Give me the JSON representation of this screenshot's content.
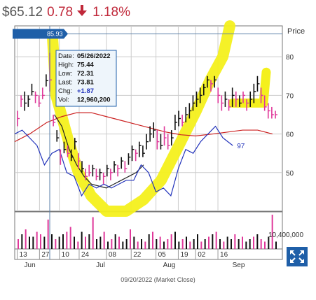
{
  "quote": {
    "last_price": "$65.12",
    "change": "0.78",
    "change_percent": "1.18%",
    "direction": "down",
    "down_color": "#c0283a"
  },
  "tooltip": {
    "date_label": "Date:",
    "date": "05/26/2022",
    "high_label": "High:",
    "high": "75.44",
    "low_label": "Low:",
    "low": "72.31",
    "last_label": "Last:",
    "last": "73.81",
    "chg_label": "Chg:",
    "chg": "+1.87",
    "vol_label": "Vol:",
    "vol": "12,960,200"
  },
  "crosshair_price": "85.93",
  "price_axis_title": "Price",
  "relative_strength_label": "97",
  "volume_scale_label": "10,400,000",
  "footer": "09/20/2022 (Market Close)",
  "expand_icon": "expand-arrows-icon",
  "chart_data": {
    "type": "line",
    "xlabel": "",
    "ylabel": "",
    "ylim": [
      40,
      88
    ],
    "grid": true,
    "price_ticks": [
      50,
      60,
      70,
      80
    ],
    "date_ticks": [
      "13",
      "27",
      "10",
      "24",
      "08",
      "22",
      "05",
      "19",
      "02",
      "16"
    ],
    "month_labels": [
      "Jun",
      "Jul",
      "Aug",
      "Sep"
    ],
    "bars": [
      {
        "date": "05/13",
        "high": 66,
        "low": 62,
        "close": 64,
        "color": "pink"
      },
      {
        "date": "05/17",
        "high": 70,
        "low": 67,
        "close": 69,
        "color": "pink"
      },
      {
        "date": "05/18",
        "high": 71,
        "low": 66,
        "close": 68,
        "color": "black"
      },
      {
        "date": "05/19",
        "high": 70,
        "low": 67,
        "close": 69,
        "color": "black"
      },
      {
        "date": "05/20",
        "high": 73,
        "low": 70,
        "close": 71,
        "color": "black"
      },
      {
        "date": "05/23",
        "high": 71,
        "low": 68,
        "close": 70,
        "color": "pink"
      },
      {
        "date": "05/24",
        "high": 70,
        "low": 67,
        "close": 68,
        "color": "pink"
      },
      {
        "date": "05/25",
        "high": 72,
        "low": 69,
        "close": 70,
        "color": "pink"
      },
      {
        "date": "05/26",
        "high": 75.44,
        "low": 72.31,
        "close": 73.81,
        "color": "black"
      },
      {
        "date": "05/27",
        "high": 81,
        "low": 71,
        "close": 74,
        "color": "pink"
      },
      {
        "date": "06/10",
        "high": 65,
        "low": 62,
        "close": 63,
        "color": "pink"
      },
      {
        "date": "06/13",
        "high": 61,
        "low": 58,
        "close": 59,
        "color": "black"
      },
      {
        "date": "06/14",
        "high": 56,
        "low": 52,
        "close": 54,
        "color": "pink"
      },
      {
        "date": "06/15",
        "high": 58,
        "low": 55,
        "close": 56,
        "color": "black"
      },
      {
        "date": "06/16",
        "high": 57,
        "low": 54,
        "close": 55,
        "color": "pink"
      },
      {
        "date": "06/17",
        "high": 56,
        "low": 53,
        "close": 54,
        "color": "black"
      },
      {
        "date": "06/21",
        "high": 59,
        "low": 56,
        "close": 58,
        "color": "black"
      },
      {
        "date": "06/22",
        "high": 55,
        "low": 51,
        "close": 53,
        "color": "pink"
      },
      {
        "date": "06/23",
        "high": 53,
        "low": 50,
        "close": 51,
        "color": "black"
      },
      {
        "date": "06/24",
        "high": 51,
        "low": 48,
        "close": 49,
        "color": "pink"
      },
      {
        "date": "06/27",
        "high": 52,
        "low": 49,
        "close": 50,
        "color": "pink"
      },
      {
        "date": "06/28",
        "high": 52,
        "low": 49,
        "close": 51,
        "color": "black"
      },
      {
        "date": "06/29",
        "high": 51,
        "low": 48,
        "close": 49,
        "color": "pink"
      },
      {
        "date": "06/30",
        "high": 51,
        "low": 48,
        "close": 50,
        "color": "black"
      },
      {
        "date": "07/01",
        "high": 50,
        "low": 47,
        "close": 49,
        "color": "pink"
      },
      {
        "date": "07/05",
        "high": 52,
        "low": 49,
        "close": 51,
        "color": "black"
      },
      {
        "date": "07/06",
        "high": 51,
        "low": 48,
        "close": 50,
        "color": "pink"
      },
      {
        "date": "07/07",
        "high": 53,
        "low": 50,
        "close": 52,
        "color": "black"
      },
      {
        "date": "07/08",
        "high": 52,
        "low": 49,
        "close": 51,
        "color": "pink"
      },
      {
        "date": "07/11",
        "high": 54,
        "low": 51,
        "close": 53,
        "color": "black"
      },
      {
        "date": "07/12",
        "high": 53,
        "low": 50,
        "close": 51,
        "color": "pink"
      },
      {
        "date": "07/13",
        "high": 55,
        "low": 52,
        "close": 54,
        "color": "black"
      },
      {
        "date": "07/14",
        "high": 57,
        "low": 53,
        "close": 56,
        "color": "black"
      },
      {
        "date": "07/15",
        "high": 56,
        "low": 53,
        "close": 55,
        "color": "pink"
      },
      {
        "date": "07/18",
        "high": 58,
        "low": 54,
        "close": 57,
        "color": "black"
      },
      {
        "date": "07/19",
        "high": 57,
        "low": 54,
        "close": 55,
        "color": "black"
      },
      {
        "date": "07/20",
        "high": 60,
        "low": 56,
        "close": 58,
        "color": "black"
      },
      {
        "date": "07/21",
        "high": 62,
        "low": 58,
        "close": 60,
        "color": "black"
      },
      {
        "date": "07/25",
        "high": 63,
        "low": 59,
        "close": 61,
        "color": "black"
      },
      {
        "date": "07/26",
        "high": 61,
        "low": 56,
        "close": 58,
        "color": "pink"
      },
      {
        "date": "07/27",
        "high": 60,
        "low": 56,
        "close": 57,
        "color": "black"
      },
      {
        "date": "07/28",
        "high": 62,
        "low": 57,
        "close": 59,
        "color": "pink"
      },
      {
        "date": "07/29",
        "high": 60,
        "low": 56,
        "close": 57,
        "color": "pink"
      },
      {
        "date": "08/01",
        "high": 61,
        "low": 57,
        "close": 59,
        "color": "black"
      },
      {
        "date": "08/03",
        "high": 65,
        "low": 61,
        "close": 63,
        "color": "black"
      },
      {
        "date": "08/04",
        "high": 66,
        "low": 62,
        "close": 64,
        "color": "black"
      },
      {
        "date": "08/05",
        "high": 65,
        "low": 62,
        "close": 63,
        "color": "pink"
      },
      {
        "date": "08/08",
        "high": 67,
        "low": 63,
        "close": 65,
        "color": "black"
      },
      {
        "date": "08/09",
        "high": 68,
        "low": 64,
        "close": 66,
        "color": "black"
      },
      {
        "date": "08/10",
        "high": 70,
        "low": 66,
        "close": 68,
        "color": "black"
      },
      {
        "date": "08/11",
        "high": 71,
        "low": 67,
        "close": 69,
        "color": "black"
      },
      {
        "date": "08/12",
        "high": 72,
        "low": 68,
        "close": 70,
        "color": "black"
      },
      {
        "date": "08/15",
        "high": 73,
        "low": 70,
        "close": 72,
        "color": "black"
      },
      {
        "date": "08/16",
        "high": 75,
        "low": 72,
        "close": 74,
        "color": "black"
      },
      {
        "date": "08/17",
        "high": 74,
        "low": 71,
        "close": 73,
        "color": "pink"
      },
      {
        "date": "08/18",
        "high": 75,
        "low": 72,
        "close": 74,
        "color": "black"
      },
      {
        "date": "08/19",
        "high": 72,
        "low": 68,
        "close": 70,
        "color": "pink"
      },
      {
        "date": "08/22",
        "high": 70,
        "low": 66,
        "close": 68,
        "color": "pink"
      },
      {
        "date": "08/23",
        "high": 71,
        "low": 67,
        "close": 69,
        "color": "black"
      },
      {
        "date": "08/24",
        "high": 69,
        "low": 66,
        "close": 67,
        "color": "pink"
      },
      {
        "date": "08/25",
        "high": 72,
        "low": 67,
        "close": 70,
        "color": "black"
      },
      {
        "date": "08/26",
        "high": 71,
        "low": 67,
        "close": 69,
        "color": "pink"
      },
      {
        "date": "08/29",
        "high": 70,
        "low": 67,
        "close": 68,
        "color": "black"
      },
      {
        "date": "08/30",
        "high": 71,
        "low": 68,
        "close": 70,
        "color": "pink"
      },
      {
        "date": "08/31",
        "high": 69,
        "low": 66,
        "close": 68,
        "color": "pink"
      },
      {
        "date": "09/01",
        "high": 71,
        "low": 67,
        "close": 69,
        "color": "black"
      },
      {
        "date": "09/02",
        "high": 73,
        "low": 68,
        "close": 71,
        "color": "black"
      },
      {
        "date": "09/06",
        "high": 75,
        "low": 71,
        "close": 73,
        "color": "black"
      },
      {
        "date": "09/07",
        "high": 72,
        "low": 68,
        "close": 70,
        "color": "pink"
      },
      {
        "date": "09/08",
        "high": 70,
        "low": 66,
        "close": 67,
        "color": "pink"
      },
      {
        "date": "09/09",
        "high": 68,
        "low": 64,
        "close": 66,
        "color": "pink"
      },
      {
        "date": "09/12",
        "high": 67,
        "low": 64,
        "close": 65,
        "color": "pink"
      },
      {
        "date": "09/13",
        "high": 66,
        "low": 64,
        "close": 65,
        "color": "pink"
      }
    ],
    "series": [
      {
        "color": "#cc2222",
        "values": [
          [
            0,
            58
          ],
          [
            6,
            60
          ],
          [
            13,
            63
          ],
          [
            19,
            64.5
          ],
          [
            25,
            65.5
          ],
          [
            31,
            65.5
          ],
          [
            37,
            64.5
          ],
          [
            43,
            63.5
          ],
          [
            49,
            62.5
          ],
          [
            55,
            61.5
          ],
          [
            61,
            60.5
          ],
          [
            67,
            59.8
          ],
          [
            73,
            59.5
          ],
          [
            80,
            60
          ],
          [
            86,
            60.5
          ],
          [
            92,
            61
          ],
          [
            98,
            61
          ],
          [
            104,
            60
          ]
        ]
      },
      {
        "color": "#222222",
        "values": [
          [
            16,
            65
          ],
          [
            19,
            62
          ],
          [
            22,
            56
          ],
          [
            25,
            52
          ],
          [
            28,
            49
          ],
          [
            31,
            47
          ],
          [
            34,
            46.5
          ],
          [
            37,
            46
          ],
          [
            40,
            47
          ],
          [
            43,
            48
          ],
          [
            46,
            49
          ],
          [
            49,
            50
          ],
          [
            52,
            52
          ]
        ]
      },
      {
        "color": "#2233bb",
        "values": [
          [
            0,
            60
          ],
          [
            3,
            61
          ],
          [
            6,
            59
          ],
          [
            9,
            57
          ],
          [
            12,
            52
          ],
          [
            15,
            55
          ],
          [
            18,
            56
          ],
          [
            21,
            50
          ],
          [
            24,
            49
          ],
          [
            27,
            44
          ],
          [
            30,
            47
          ],
          [
            33,
            46
          ],
          [
            36,
            47
          ],
          [
            39,
            46
          ],
          [
            42,
            47
          ],
          [
            45,
            48
          ],
          [
            48,
            48
          ],
          [
            51,
            52
          ],
          [
            54,
            50
          ],
          [
            57,
            45
          ],
          [
            60,
            46
          ],
          [
            63,
            44
          ],
          [
            66,
            51
          ],
          [
            69,
            56
          ],
          [
            72,
            55
          ],
          [
            75,
            58
          ],
          [
            78,
            60
          ],
          [
            81,
            62
          ],
          [
            84,
            59
          ],
          [
            86,
            58
          ],
          [
            88,
            57
          ]
        ]
      }
    ],
    "volume_series": [
      4,
      6,
      8,
      5,
      5,
      7,
      6,
      5,
      12,
      6,
      4,
      5,
      6,
      7,
      9,
      5,
      3,
      7,
      5,
      6,
      13,
      4,
      5,
      7,
      3,
      4,
      6,
      5,
      3,
      4,
      8,
      5,
      3,
      4,
      3,
      6,
      7,
      4,
      5,
      3,
      4,
      6,
      7,
      3,
      4,
      5,
      3,
      4,
      6,
      3,
      4,
      5,
      6,
      7,
      4,
      3,
      5,
      4,
      6,
      4,
      5,
      3,
      4,
      5,
      6,
      4,
      3,
      5,
      14,
      3
    ],
    "volume_colors": [
      "pink",
      "black",
      "pink",
      "black",
      "black",
      "pink",
      "pink",
      "black",
      "pink",
      "black",
      "pink",
      "black",
      "black",
      "pink",
      "pink",
      "black",
      "pink",
      "black",
      "pink",
      "black",
      "pink",
      "black",
      "black",
      "pink",
      "black",
      "pink",
      "black",
      "pink",
      "black",
      "black",
      "pink",
      "black",
      "pink",
      "black",
      "pink",
      "black",
      "pink",
      "black",
      "pink",
      "black",
      "pink",
      "pink",
      "black",
      "black",
      "pink",
      "black",
      "pink",
      "black",
      "black",
      "pink",
      "black",
      "pink",
      "black",
      "pink",
      "black",
      "pink",
      "black",
      "black",
      "pink",
      "black",
      "pink",
      "black",
      "black",
      "pink",
      "black",
      "pink",
      "pink",
      "black",
      "pink",
      "black"
    ]
  }
}
